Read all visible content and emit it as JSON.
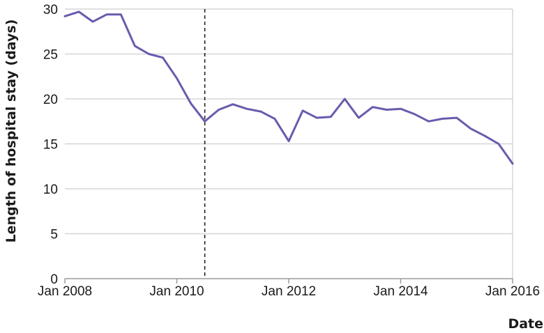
{
  "chart_data": {
    "type": "line",
    "title": "",
    "xlabel": "Date",
    "ylabel": "Length of hospital stay (days)",
    "ylim": [
      0,
      30
    ],
    "yticks": [
      0,
      5,
      10,
      15,
      20,
      25,
      30
    ],
    "xlim": [
      "2008-01",
      "2016-01"
    ],
    "xticks": [
      {
        "value": "2008-01",
        "label": "Jan 2008"
      },
      {
        "value": "2010-01",
        "label": "Jan 2010"
      },
      {
        "value": "2012-01",
        "label": "Jan 2012"
      },
      {
        "value": "2014-01",
        "label": "Jan 2014"
      },
      {
        "value": "2016-01",
        "label": "Jan 2016"
      }
    ],
    "grid": "horizontal",
    "reference_line": {
      "x": "2010-07",
      "style": "dashed"
    },
    "series": [
      {
        "color": "#6b5aad",
        "points": [
          {
            "x": "2008-01",
            "y": 29.2
          },
          {
            "x": "2008-04",
            "y": 29.7
          },
          {
            "x": "2008-07",
            "y": 28.6
          },
          {
            "x": "2008-10",
            "y": 29.4
          },
          {
            "x": "2009-01",
            "y": 29.4
          },
          {
            "x": "2009-04",
            "y": 25.9
          },
          {
            "x": "2009-07",
            "y": 25.0
          },
          {
            "x": "2009-10",
            "y": 24.6
          },
          {
            "x": "2010-01",
            "y": 22.3
          },
          {
            "x": "2010-04",
            "y": 19.5
          },
          {
            "x": "2010-07",
            "y": 17.5
          },
          {
            "x": "2010-10",
            "y": 18.8
          },
          {
            "x": "2011-01",
            "y": 19.4
          },
          {
            "x": "2011-04",
            "y": 18.9
          },
          {
            "x": "2011-07",
            "y": 18.6
          },
          {
            "x": "2011-10",
            "y": 17.8
          },
          {
            "x": "2012-01",
            "y": 15.3
          },
          {
            "x": "2012-04",
            "y": 18.7
          },
          {
            "x": "2012-07",
            "y": 17.9
          },
          {
            "x": "2012-10",
            "y": 18.0
          },
          {
            "x": "2013-01",
            "y": 20.0
          },
          {
            "x": "2013-04",
            "y": 17.9
          },
          {
            "x": "2013-07",
            "y": 19.1
          },
          {
            "x": "2013-10",
            "y": 18.8
          },
          {
            "x": "2014-01",
            "y": 18.9
          },
          {
            "x": "2014-04",
            "y": 18.3
          },
          {
            "x": "2014-07",
            "y": 17.5
          },
          {
            "x": "2014-10",
            "y": 17.8
          },
          {
            "x": "2015-01",
            "y": 17.9
          },
          {
            "x": "2015-04",
            "y": 16.7
          },
          {
            "x": "2015-07",
            "y": 15.9
          },
          {
            "x": "2015-10",
            "y": 15.0
          },
          {
            "x": "2016-01",
            "y": 12.8
          }
        ]
      }
    ]
  }
}
